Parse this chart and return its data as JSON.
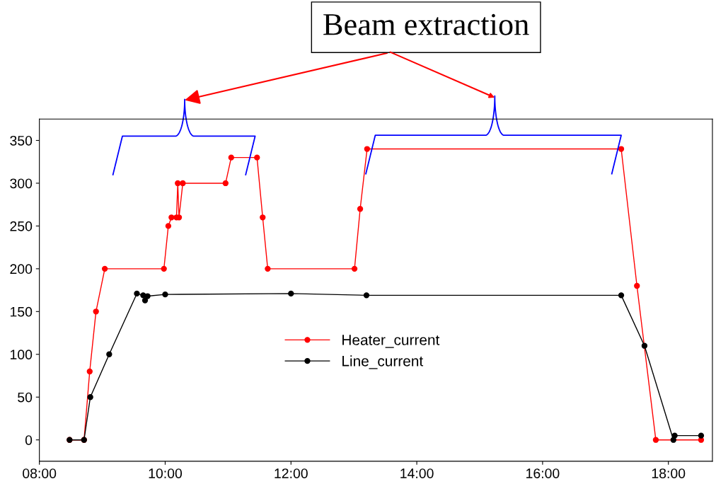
{
  "chart_data": {
    "type": "line",
    "xlim": [
      8,
      18.7
    ],
    "xticks": [
      {
        "value": 8,
        "label": "08:00"
      },
      {
        "value": 10,
        "label": "10:00"
      },
      {
        "value": 12,
        "label": "12:00"
      },
      {
        "value": 14,
        "label": "14:00"
      },
      {
        "value": 16,
        "label": "16:00"
      },
      {
        "value": 18,
        "label": "18:00"
      }
    ],
    "ylim": [
      -25,
      375
    ],
    "yticks": [
      0,
      50,
      100,
      150,
      200,
      250,
      300,
      350
    ],
    "series": [
      {
        "name": "Heater_current",
        "color": "#ff0000",
        "x": [
          8.48,
          8.71,
          8.8,
          8.9,
          9.04,
          9.98,
          10.05,
          10.1,
          10.18,
          10.2,
          10.22,
          10.28,
          10.96,
          11.05,
          11.46,
          11.55,
          11.63,
          13.01,
          13.1,
          13.21,
          17.25,
          17.5,
          17.8,
          18.52
        ],
        "values": [
          0,
          0,
          80,
          150,
          200,
          200,
          250,
          260,
          260,
          300,
          260,
          300,
          300,
          330,
          330,
          260,
          200,
          200,
          270,
          340,
          340,
          180,
          0,
          0
        ]
      },
      {
        "name": "Line_current",
        "color": "#000000",
        "x": [
          8.48,
          8.71,
          8.81,
          9.11,
          9.55,
          9.65,
          9.68,
          9.72,
          10.0,
          12.0,
          13.2,
          17.25,
          17.62,
          18.08,
          18.1,
          18.52
        ],
        "values": [
          0,
          0,
          50,
          100,
          171,
          169,
          163,
          168,
          170,
          171,
          169,
          169,
          110,
          0,
          5,
          5
        ]
      }
    ],
    "marker": "circle",
    "line_style": "solid",
    "legend": "center",
    "grid": false,
    "annotations": [
      "Beam extraction"
    ]
  }
}
